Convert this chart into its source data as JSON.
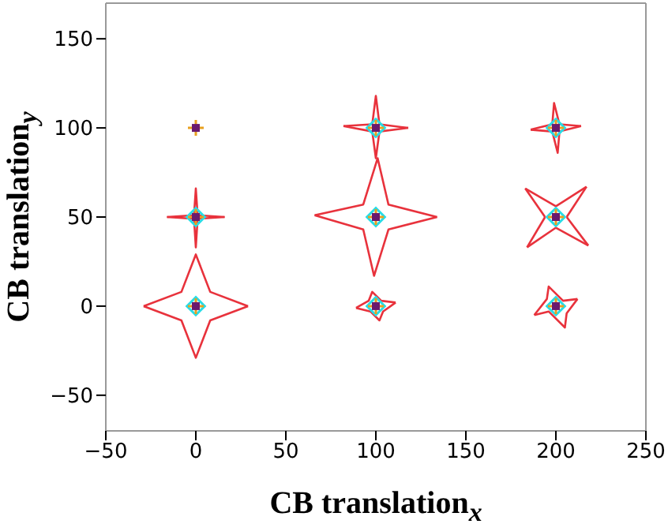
{
  "chart_data": {
    "type": "scatter",
    "xlabel": "CB translation$_{x}$",
    "ylabel": "CB translation$_{y}$",
    "xlim": [
      -50,
      250
    ],
    "ylim": [
      -70,
      170
    ],
    "xticks": [
      -50,
      0,
      50,
      100,
      150,
      200,
      250
    ],
    "yticks": [
      -50,
      0,
      50,
      100,
      150
    ],
    "grid": false,
    "legend": false,
    "series": [
      {
        "type": "line",
        "color": "#e8323c",
        "marker": "none",
        "x": [
          -29,
          -8,
          0,
          8,
          29
        ],
        "values": [
          0,
          8,
          29,
          8,
          0
        ]
      },
      {
        "type": "line",
        "color": "#e8323c",
        "marker": "none",
        "x": [
          -29,
          -8,
          0,
          8,
          29
        ],
        "values": [
          0,
          -8,
          -29,
          -8,
          0
        ]
      },
      {
        "type": "line",
        "color": "#e8323c",
        "marker": "none",
        "x": [
          -16,
          -1,
          0,
          1,
          16
        ],
        "values": [
          50,
          51,
          66,
          51,
          50
        ]
      },
      {
        "type": "line",
        "color": "#e8323c",
        "marker": "none",
        "x": [
          -16,
          -1,
          0,
          1,
          16
        ],
        "values": [
          50,
          49,
          33,
          49,
          50
        ]
      },
      {
        "type": "line",
        "color": "#e8323c",
        "marker": "none",
        "x": [
          66,
          93,
          101,
          107,
          134
        ],
        "values": [
          51,
          57,
          83,
          57,
          50
        ]
      },
      {
        "type": "line",
        "color": "#e8323c",
        "marker": "none",
        "x": [
          66,
          93,
          99,
          107,
          134
        ],
        "values": [
          51,
          43,
          17,
          43,
          50
        ]
      },
      {
        "type": "line",
        "color": "#e8323c",
        "marker": "none",
        "x": [
          82,
          98,
          100,
          102,
          118
        ],
        "values": [
          101,
          102,
          118,
          102,
          100
        ]
      },
      {
        "type": "line",
        "color": "#e8323c",
        "marker": "none",
        "x": [
          82,
          98,
          100,
          102,
          118
        ],
        "values": [
          101,
          98,
          83,
          98,
          100
        ]
      },
      {
        "type": "line",
        "color": "#e8323c",
        "marker": "none",
        "x": [
          89,
          96,
          98,
          103,
          111
        ],
        "values": [
          -1,
          3,
          8,
          3,
          2
        ]
      },
      {
        "type": "line",
        "color": "#e8323c",
        "marker": "none",
        "x": [
          89,
          97,
          102,
          104,
          111
        ],
        "values": [
          -1,
          -3,
          -8,
          -3,
          2
        ]
      },
      {
        "type": "line",
        "color": "#e8323c",
        "marker": "none",
        "x": [
          186,
          198,
          199,
          202,
          214
        ],
        "values": [
          99,
          102,
          114,
          102,
          101
        ]
      },
      {
        "type": "line",
        "color": "#e8323c",
        "marker": "none",
        "x": [
          186,
          198,
          201,
          202,
          214
        ],
        "values": [
          99,
          98,
          86,
          98,
          101
        ]
      },
      {
        "type": "line",
        "color": "#e8323c",
        "marker": "none",
        "x": [
          183,
          200,
          217
        ],
        "values": [
          66,
          56,
          67
        ]
      },
      {
        "type": "line",
        "color": "#e8323c",
        "marker": "none",
        "x": [
          206,
          217
        ],
        "values": [
          50,
          67
        ]
      },
      {
        "type": "line",
        "color": "#e8323c",
        "marker": "none",
        "x": [
          206,
          218
        ],
        "values": [
          50,
          34
        ]
      },
      {
        "type": "line",
        "color": "#e8323c",
        "marker": "none",
        "x": [
          184,
          200,
          218
        ],
        "values": [
          33,
          44,
          34
        ]
      },
      {
        "type": "line",
        "color": "#e8323c",
        "marker": "none",
        "x": [
          184,
          194
        ],
        "values": [
          33,
          50
        ]
      },
      {
        "type": "line",
        "color": "#e8323c",
        "marker": "none",
        "x": [
          183,
          194
        ],
        "values": [
          66,
          50
        ]
      },
      {
        "type": "line",
        "color": "#e8323c",
        "marker": "none",
        "x": [
          188,
          195,
          196,
          204,
          212
        ],
        "values": [
          -5,
          4,
          11,
          3,
          4
        ]
      },
      {
        "type": "line",
        "color": "#e8323c",
        "marker": "none",
        "x": [
          188,
          196,
          205,
          206,
          212
        ],
        "values": [
          -5,
          -3,
          -12,
          -4,
          4
        ]
      },
      {
        "color": "#28dce6",
        "marker": "diamond",
        "x": [
          0,
          0,
          100,
          100,
          100,
          200,
          200,
          200
        ],
        "values": [
          0,
          50,
          0,
          50,
          100,
          0,
          50,
          100
        ]
      },
      {
        "color": "#e8a020",
        "marker": "cross",
        "x": [
          0,
          0,
          0,
          100,
          100,
          100,
          200,
          200,
          200
        ],
        "values": [
          0,
          50,
          100,
          0,
          50,
          100,
          0,
          50,
          100
        ]
      },
      {
        "color": "#6a1a6e",
        "marker": "square",
        "x": [
          0,
          0,
          0,
          100,
          100,
          100,
          200,
          200,
          200
        ],
        "values": [
          0,
          50,
          100,
          0,
          50,
          100,
          0,
          50,
          100
        ]
      }
    ]
  }
}
